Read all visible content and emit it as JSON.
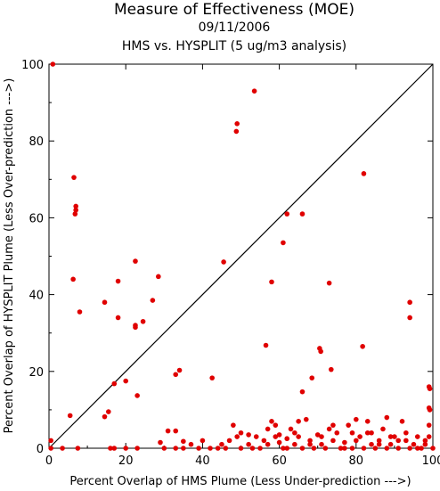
{
  "chart_data": {
    "type": "scatter",
    "title": "Measure of Effectiveness (MOE)",
    "subtitle_date": "09/11/2006",
    "subtitle_analysis": "HMS vs. HYSPLIT  (5 ug/m3 analysis)",
    "xlabel": "Percent Overlap of HMS Plume (Less Under-prediction --->)",
    "ylabel": "Percent Overlap of HYSPLIT Plume (Less Over-prediction --->)",
    "xlim": [
      0,
      100
    ],
    "ylim": [
      0,
      100
    ],
    "xticks": [
      "0",
      "20",
      "40",
      "60",
      "80",
      "100"
    ],
    "yticks": [
      "0",
      "20",
      "40",
      "60",
      "80",
      "100"
    ],
    "diagonal_line": true,
    "marker_color": "#e00000",
    "points": [
      [
        1,
        100
      ],
      [
        53.5,
        93
      ],
      [
        49,
        84.5
      ],
      [
        48.8,
        82.5
      ],
      [
        82,
        71.5
      ],
      [
        6.5,
        70.5
      ],
      [
        7,
        63
      ],
      [
        7,
        62
      ],
      [
        6.8,
        61
      ],
      [
        62,
        61
      ],
      [
        66,
        61
      ],
      [
        61,
        53.5
      ],
      [
        6.3,
        44
      ],
      [
        18,
        43.5
      ],
      [
        58,
        43.3
      ],
      [
        73,
        43
      ],
      [
        22.5,
        48.7
      ],
      [
        45.5,
        48.5
      ],
      [
        28.5,
        44.7
      ],
      [
        14.5,
        38
      ],
      [
        27,
        38.5
      ],
      [
        94,
        38
      ],
      [
        8,
        35.5
      ],
      [
        18,
        34
      ],
      [
        94,
        34
      ],
      [
        24.5,
        33
      ],
      [
        22.5,
        32
      ],
      [
        22.5,
        31.5
      ],
      [
        56.5,
        26.8
      ],
      [
        81.7,
        26.5
      ],
      [
        70.5,
        26
      ],
      [
        70.8,
        25.2
      ],
      [
        73.5,
        20.5
      ],
      [
        34,
        20.3
      ],
      [
        33,
        19.2
      ],
      [
        42.5,
        18.3
      ],
      [
        68.5,
        18.3
      ],
      [
        17,
        16.8
      ],
      [
        20,
        17.5
      ],
      [
        99,
        16
      ],
      [
        99.2,
        15.5
      ],
      [
        66,
        14.7
      ],
      [
        23,
        13.7
      ],
      [
        99,
        10.5
      ],
      [
        99.2,
        10
      ],
      [
        15.5,
        9.5
      ],
      [
        5.5,
        8.5
      ],
      [
        14.5,
        8.2
      ],
      [
        31,
        4.5
      ],
      [
        33,
        4.5
      ],
      [
        50,
        4
      ],
      [
        52,
        3.5
      ],
      [
        60,
        3.5
      ],
      [
        64,
        4
      ],
      [
        75,
        4
      ],
      [
        79,
        4
      ],
      [
        84,
        4
      ],
      [
        89,
        3
      ],
      [
        0.5,
        2
      ],
      [
        0.5,
        0
      ],
      [
        3.5,
        0
      ],
      [
        7.5,
        0
      ],
      [
        16,
        0
      ],
      [
        17,
        0
      ],
      [
        20,
        0
      ],
      [
        23,
        0
      ],
      [
        29,
        1.5
      ],
      [
        35,
        0
      ],
      [
        35,
        1.8
      ],
      [
        39,
        0
      ],
      [
        40,
        2
      ],
      [
        44,
        0
      ],
      [
        46,
        0
      ],
      [
        48,
        6
      ],
      [
        49,
        3
      ],
      [
        50,
        0
      ],
      [
        52,
        1
      ],
      [
        54,
        3
      ],
      [
        55,
        0
      ],
      [
        56,
        2
      ],
      [
        57,
        5
      ],
      [
        58,
        7
      ],
      [
        59,
        3
      ],
      [
        60,
        1.5
      ],
      [
        61,
        0
      ],
      [
        62,
        2.5
      ],
      [
        63,
        5
      ],
      [
        64,
        1
      ],
      [
        65,
        3
      ],
      [
        66,
        0
      ],
      [
        67,
        7.5
      ],
      [
        68,
        2
      ],
      [
        69,
        0
      ],
      [
        70,
        3.5
      ],
      [
        71,
        1
      ],
      [
        72,
        0
      ],
      [
        73,
        5
      ],
      [
        74,
        2
      ],
      [
        76,
        0
      ],
      [
        77,
        1.5
      ],
      [
        78,
        6
      ],
      [
        79,
        0
      ],
      [
        80,
        2
      ],
      [
        81,
        3
      ],
      [
        82,
        0
      ],
      [
        83,
        7
      ],
      [
        84,
        1
      ],
      [
        85,
        0
      ],
      [
        86,
        2
      ],
      [
        87,
        5
      ],
      [
        88,
        0
      ],
      [
        89,
        1
      ],
      [
        90,
        3
      ],
      [
        91,
        0
      ],
      [
        92,
        7
      ],
      [
        93,
        2
      ],
      [
        94,
        0
      ],
      [
        95,
        1
      ],
      [
        96,
        3
      ],
      [
        97,
        0
      ],
      [
        98,
        2
      ],
      [
        99,
        6
      ],
      [
        100,
        0
      ],
      [
        99,
        3
      ],
      [
        98,
        1
      ],
      [
        96,
        0
      ],
      [
        93,
        4
      ],
      [
        91,
        2
      ],
      [
        88,
        8
      ],
      [
        86,
        1
      ],
      [
        83,
        4
      ],
      [
        80,
        7.5
      ],
      [
        77,
        0
      ],
      [
        74,
        6
      ],
      [
        71,
        3
      ],
      [
        68,
        1
      ],
      [
        65,
        7
      ],
      [
        62,
        0
      ],
      [
        59,
        6
      ],
      [
        57,
        1
      ],
      [
        53,
        0
      ],
      [
        47,
        2
      ],
      [
        45,
        1
      ],
      [
        42,
        0
      ],
      [
        37,
        1
      ],
      [
        33,
        0
      ],
      [
        30,
        0
      ]
    ]
  }
}
